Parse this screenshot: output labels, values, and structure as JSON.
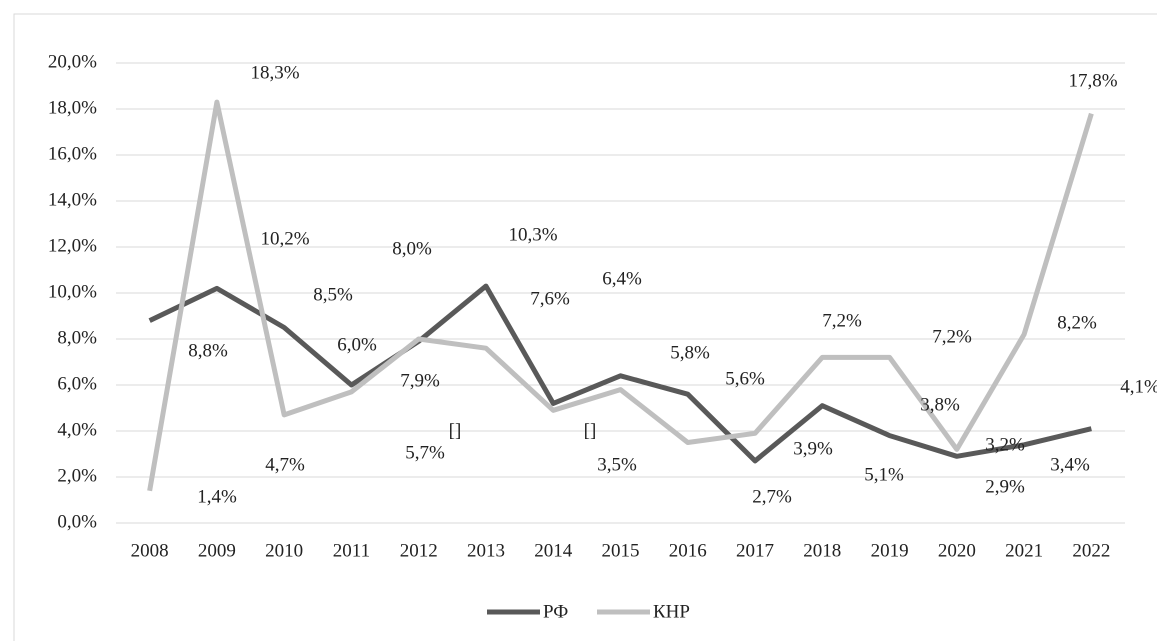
{
  "chart_data": {
    "type": "line",
    "categories": [
      "2008",
      "2009",
      "2010",
      "2011",
      "2012",
      "2013",
      "2014",
      "2015",
      "2016",
      "2017",
      "2018",
      "2019",
      "2020",
      "2021",
      "2022"
    ],
    "series": [
      {
        "name": "РФ",
        "color": "#595959",
        "values": [
          8.8,
          10.2,
          8.5,
          6.0,
          7.9,
          10.3,
          5.2,
          6.4,
          5.6,
          2.7,
          5.1,
          3.8,
          2.9,
          3.4,
          4.1
        ],
        "value_labels": [
          "8,8%",
          "10,2%",
          "8,5%",
          "6,0%",
          "7,9%",
          "10,3%",
          "[]",
          "6,4%",
          "5,6%",
          "2,7%",
          "5,1%",
          "3,8%",
          "2,9%",
          "3,4%",
          "4,1%"
        ]
      },
      {
        "name": "КНР",
        "color": "#bfbfbf",
        "values": [
          1.4,
          18.3,
          4.7,
          5.7,
          8.0,
          7.6,
          4.9,
          5.8,
          3.5,
          3.9,
          7.2,
          7.2,
          3.2,
          8.2,
          17.8
        ],
        "value_labels": [
          "1,4%",
          "18,3%",
          "4,7%",
          "5,7%",
          "8,0%",
          "7,6%",
          "[]",
          "5,8%",
          "3,5%",
          "3,9%",
          "7,2%",
          "7,2%",
          "3,2%",
          "8,2%",
          "17,8%"
        ]
      }
    ],
    "ylim": [
      0,
      20
    ],
    "yticks": [
      {
        "value": 0,
        "label": "0,0%"
      },
      {
        "value": 2,
        "label": "2,0%"
      },
      {
        "value": 4,
        "label": "4,0%"
      },
      {
        "value": 6,
        "label": "6,0%"
      },
      {
        "value": 8,
        "label": "8,0%"
      },
      {
        "value": 10,
        "label": "10,0%"
      },
      {
        "value": 12,
        "label": "12,0%"
      },
      {
        "value": 14,
        "label": "14,0%"
      },
      {
        "value": 16,
        "label": "16,0%"
      },
      {
        "value": 18,
        "label": "18,0%"
      },
      {
        "value": 20,
        "label": "20,0%"
      }
    ],
    "grid": true,
    "legend": "bottom"
  }
}
